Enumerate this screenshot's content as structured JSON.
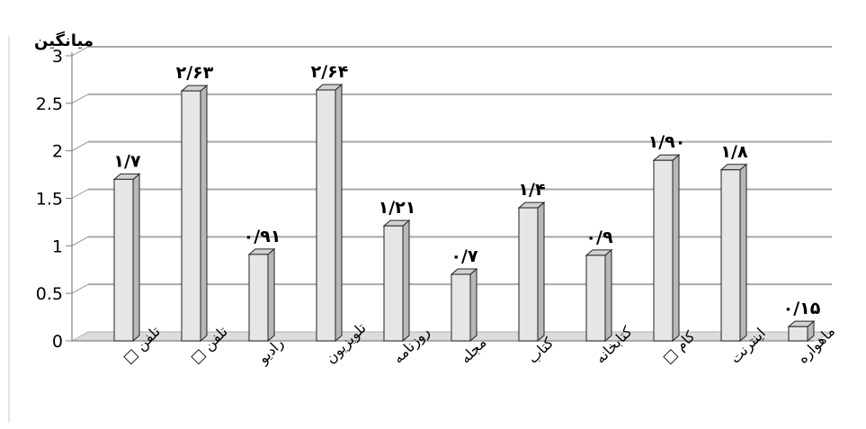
{
  "chart_data": {
    "type": "bar",
    "title": "",
    "xlabel": "",
    "ylabel": "میانگین",
    "ylim": [
      0,
      3
    ],
    "yticks": [
      "0",
      "0.5",
      "1",
      "1.5",
      "2",
      "2.5",
      "3"
    ],
    "grid": true,
    "categories": [
      "تلفن □",
      "تلفن □",
      "رادیو",
      "تلویزیون",
      "روزنامه",
      "مجله",
      "کتاب",
      "کتابخانه",
      "کام □",
      "اینترنت",
      "ماهواره"
    ],
    "values": [
      1.7,
      2.63,
      0.91,
      2.64,
      1.21,
      0.7,
      1.4,
      0.9,
      1.9,
      1.8,
      0.15
    ],
    "data_labels": [
      "۱/۷",
      "۲/۶۳",
      "۰/۹۱",
      "۲/۶۴",
      "۱/۲۱",
      "۰/۷",
      "۱/۴",
      "۰/۹",
      "۱/۹۰",
      "۱/۸",
      "۰/۱۵"
    ],
    "colors": {
      "bar_front": "#e6e6e6",
      "bar_side": "#b8b8b8",
      "bar_top": "#d2d2d2",
      "grid": "#a9a9a9",
      "axis": "#808080",
      "floor": "#dcdcdc"
    }
  }
}
